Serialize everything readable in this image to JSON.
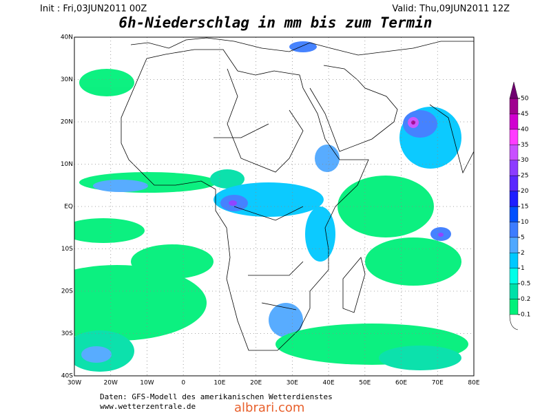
{
  "header": {
    "init": "Init : Fri,03JUN2011 00Z",
    "valid": "Valid: Thu,09JUN2011 12Z",
    "title": "6h-Niederschlag in mm bis zum Termin"
  },
  "map": {
    "lon_range": [
      -30,
      80
    ],
    "lat_range": [
      -40,
      40
    ],
    "lon_ticks": [
      {
        "value": -30,
        "label": "30W"
      },
      {
        "value": -20,
        "label": "20W"
      },
      {
        "value": -10,
        "label": "10W"
      },
      {
        "value": 0,
        "label": "0"
      },
      {
        "value": 10,
        "label": "10E"
      },
      {
        "value": 20,
        "label": "20E"
      },
      {
        "value": 30,
        "label": "30E"
      },
      {
        "value": 40,
        "label": "40E"
      },
      {
        "value": 50,
        "label": "50E"
      },
      {
        "value": 60,
        "label": "60E"
      },
      {
        "value": 70,
        "label": "70E"
      },
      {
        "value": 80,
        "label": "80E"
      }
    ],
    "lat_ticks": [
      {
        "value": 40,
        "label": "40N"
      },
      {
        "value": 30,
        "label": "30N"
      },
      {
        "value": 20,
        "label": "20N"
      },
      {
        "value": 10,
        "label": "10N"
      },
      {
        "value": 0,
        "label": "EQ"
      },
      {
        "value": -10,
        "label": "10S"
      },
      {
        "value": -20,
        "label": "20S"
      },
      {
        "value": -30,
        "label": "30S"
      },
      {
        "value": -40,
        "label": "40S"
      }
    ]
  },
  "colorbar": {
    "levels": [
      0.1,
      0.2,
      0.5,
      1,
      2,
      5,
      10,
      15,
      20,
      25,
      30,
      35,
      40,
      45,
      50
    ],
    "colors": [
      "#00f07a",
      "#00e0a8",
      "#00ffe8",
      "#00c8ff",
      "#50a8ff",
      "#3c7cff",
      "#0050ff",
      "#1e1eff",
      "#5a28ff",
      "#8c3cff",
      "#c850ff",
      "#ff3cff",
      "#d000d0",
      "#a00090",
      "#700070"
    ]
  },
  "footer": {
    "source": "Daten: GFS-Modell des amerikanischen Wetterdienstes",
    "url": "www.wetterzentrale.de",
    "watermark": "albrari.com"
  }
}
